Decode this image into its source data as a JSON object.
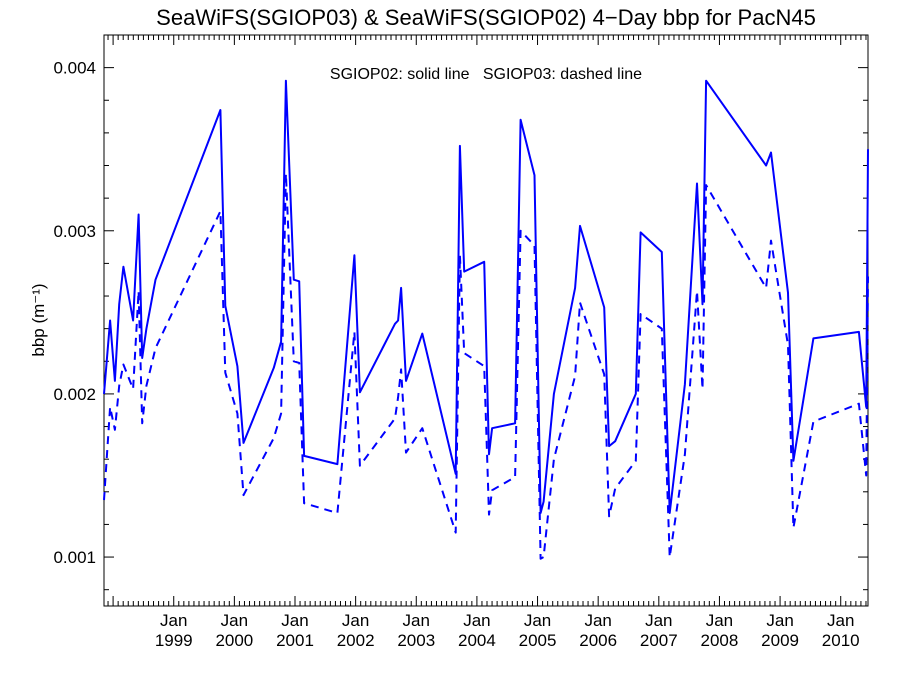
{
  "chart_data": {
    "type": "line",
    "title": "SeaWiFS(SGIOP03) & SeaWiFS(SGIOP02) 4−Day bbp for PacN45",
    "ylabel": "bbp (m⁻¹)",
    "xlabel": "",
    "legend_text": "SGIOP02: solid line   SGIOP03: dashed line",
    "legend_placement": "top-center",
    "grid": false,
    "line_color": "#0000ff",
    "xlim": [
      1997.85,
      2010.45
    ],
    "ylim": [
      0.0007,
      0.0042
    ],
    "yticks": [
      {
        "value": 0.001,
        "label": "0.001"
      },
      {
        "value": 0.002,
        "label": "0.002"
      },
      {
        "value": 0.003,
        "label": "0.003"
      },
      {
        "value": 0.004,
        "label": "0.004"
      }
    ],
    "xticks": [
      {
        "value": 1999,
        "month": "Jan",
        "year": "1999"
      },
      {
        "value": 2000,
        "month": "Jan",
        "year": "2000"
      },
      {
        "value": 2001,
        "month": "Jan",
        "year": "2001"
      },
      {
        "value": 2002,
        "month": "Jan",
        "year": "2002"
      },
      {
        "value": 2003,
        "month": "Jan",
        "year": "2003"
      },
      {
        "value": 2004,
        "month": "Jan",
        "year": "2004"
      },
      {
        "value": 2005,
        "month": "Jan",
        "year": "2005"
      },
      {
        "value": 2006,
        "month": "Jan",
        "year": "2006"
      },
      {
        "value": 2007,
        "month": "Jan",
        "year": "2007"
      },
      {
        "value": 2008,
        "month": "Jan",
        "year": "2008"
      },
      {
        "value": 2009,
        "month": "Jan",
        "year": "2009"
      },
      {
        "value": 2010,
        "month": "Jan",
        "year": "2010"
      }
    ],
    "series": [
      {
        "name": "SGIOP02",
        "style": "solid",
        "x": [
          1997.85,
          1997.95,
          1998.03,
          1998.1,
          1998.17,
          1998.33,
          1998.42,
          1998.48,
          1998.55,
          1998.7,
          1999.77,
          1999.85,
          2000.05,
          2000.15,
          2000.65,
          2000.77,
          2000.85,
          2000.98,
          2001.07,
          2001.15,
          2001.7,
          2001.98,
          2002.07,
          2002.65,
          2002.7,
          2002.75,
          2002.83,
          2003.1,
          2003.65,
          2003.72,
          2003.79,
          2004.12,
          2004.2,
          2004.25,
          2004.63,
          2004.72,
          2004.95,
          2005.05,
          2005.1,
          2005.27,
          2005.62,
          2005.7,
          2006.1,
          2006.18,
          2006.28,
          2006.62,
          2006.7,
          2007.05,
          2007.18,
          2007.43,
          2007.63,
          2007.72,
          2007.78,
          2008.77,
          2008.85,
          2009.13,
          2009.22,
          2009.55,
          2010.3,
          2010.42,
          2010.45
        ],
        "y": [
          0.002,
          0.00245,
          0.00208,
          0.00255,
          0.00278,
          0.00245,
          0.0031,
          0.00222,
          0.0024,
          0.0027,
          0.00374,
          0.00254,
          0.00217,
          0.0017,
          0.00216,
          0.00232,
          0.00392,
          0.0027,
          0.00269,
          0.00162,
          0.00157,
          0.00285,
          0.00201,
          0.00243,
          0.00245,
          0.00265,
          0.00208,
          0.00237,
          0.00151,
          0.00352,
          0.00275,
          0.00281,
          0.00163,
          0.00179,
          0.00182,
          0.00368,
          0.00334,
          0.00127,
          0.00134,
          0.002,
          0.00265,
          0.00303,
          0.00253,
          0.00168,
          0.00171,
          0.002,
          0.00299,
          0.00287,
          0.00127,
          0.00206,
          0.00329,
          0.00255,
          0.00392,
          0.0034,
          0.00348,
          0.00262,
          0.00159,
          0.00234,
          0.00238,
          0.00192,
          0.0035
        ]
      },
      {
        "name": "SGIOP03",
        "style": "dashed",
        "x": [
          1997.85,
          1997.95,
          1998.03,
          1998.1,
          1998.17,
          1998.33,
          1998.42,
          1998.48,
          1998.55,
          1998.7,
          1999.77,
          1999.85,
          2000.05,
          2000.15,
          2000.65,
          2000.77,
          2000.85,
          2000.98,
          2001.07,
          2001.15,
          2001.7,
          2001.98,
          2002.07,
          2002.65,
          2002.7,
          2002.75,
          2002.83,
          2003.1,
          2003.65,
          2003.72,
          2003.79,
          2004.12,
          2004.2,
          2004.25,
          2004.63,
          2004.72,
          2004.95,
          2005.05,
          2005.1,
          2005.27,
          2005.62,
          2005.7,
          2006.1,
          2006.18,
          2006.28,
          2006.62,
          2006.7,
          2007.05,
          2007.18,
          2007.43,
          2007.63,
          2007.72,
          2007.78,
          2008.77,
          2008.85,
          2009.13,
          2009.22,
          2009.55,
          2010.3,
          2010.42,
          2010.45
        ],
        "y": [
          0.00135,
          0.00192,
          0.00178,
          0.00205,
          0.00218,
          0.00203,
          0.00263,
          0.00182,
          0.00205,
          0.00228,
          0.00312,
          0.00213,
          0.00188,
          0.00138,
          0.00173,
          0.00188,
          0.00335,
          0.0022,
          0.00219,
          0.00133,
          0.00127,
          0.00238,
          0.00156,
          0.00185,
          0.00198,
          0.00215,
          0.00164,
          0.00179,
          0.00115,
          0.00285,
          0.00225,
          0.00217,
          0.00126,
          0.00141,
          0.00149,
          0.003,
          0.00291,
          0.00099,
          0.001,
          0.0016,
          0.00211,
          0.00256,
          0.00212,
          0.00125,
          0.00142,
          0.00159,
          0.00249,
          0.0024,
          0.001,
          0.00163,
          0.00263,
          0.00203,
          0.00328,
          0.00265,
          0.00294,
          0.0023,
          0.00118,
          0.00183,
          0.00194,
          0.0015,
          0.00272
        ]
      }
    ]
  }
}
